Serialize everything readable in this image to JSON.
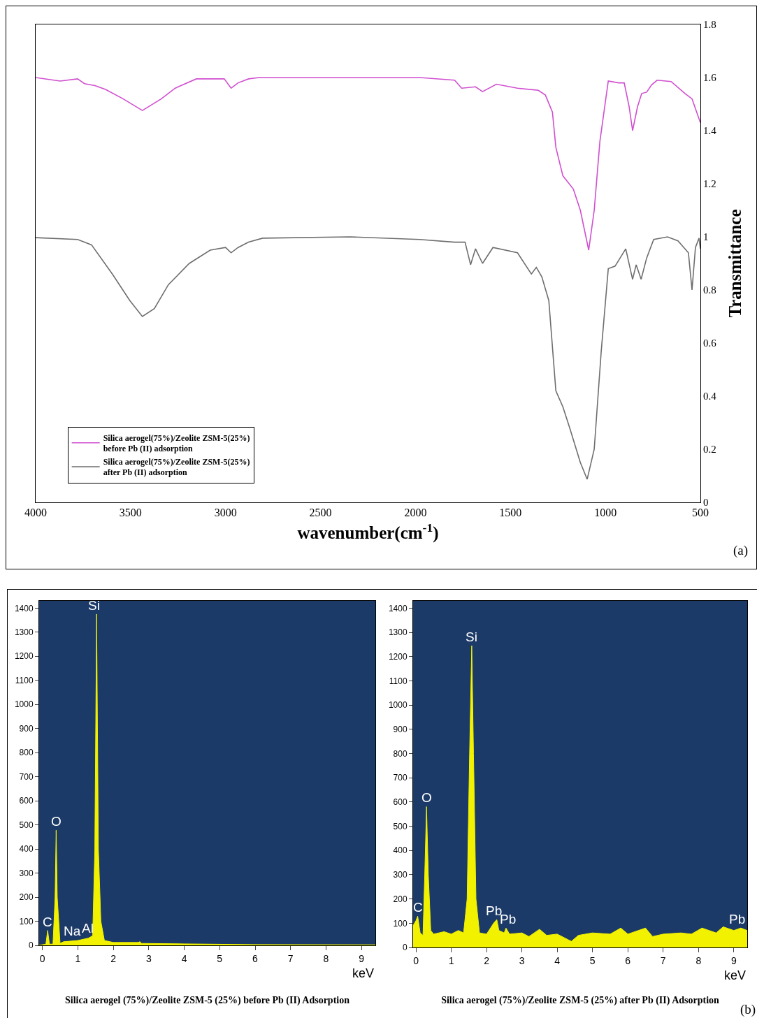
{
  "chart_data": [
    {
      "type": "line",
      "xlabel": "wavenumber(cm$^{-1}$)",
      "ylabel": "Transmittance",
      "xlim": [
        4000,
        500
      ],
      "ylim": [
        0,
        1.8
      ],
      "xticks": [
        4000,
        3500,
        3000,
        2500,
        2000,
        1500,
        1000,
        500
      ],
      "yticks": [
        0,
        0.2,
        0.4,
        0.6,
        0.8,
        1,
        1.2,
        1.4,
        1.6,
        1.8
      ],
      "legend": "bottom left",
      "annotations": [
        "(a)"
      ],
      "series": [
        {
          "name": "Silica aerogel(75%)/Zeolite ZSM-5(25%)\nbefore Pb (II) adsorption",
          "color": "#d04fcf",
          "x": [
            4000,
            3871,
            3779,
            3743,
            3688,
            3632,
            3540,
            3438,
            3338,
            3265,
            3154,
            3007,
            2971,
            2934,
            2879,
            2824,
            1978,
            1794,
            1757,
            1684,
            1647,
            1574,
            1463,
            1353,
            1316,
            1279,
            1261,
            1224,
            1169,
            1132,
            1088,
            1059,
            1029,
            985,
            930,
            901,
            875,
            857,
            831,
            809,
            783,
            757,
            728,
            654,
            581,
            544,
            500
          ],
          "values": [
            1.6,
            1.587,
            1.595,
            1.577,
            1.57,
            1.555,
            1.52,
            1.476,
            1.52,
            1.56,
            1.595,
            1.595,
            1.56,
            1.58,
            1.595,
            1.6,
            1.6,
            1.59,
            1.56,
            1.565,
            1.547,
            1.575,
            1.56,
            1.552,
            1.534,
            1.47,
            1.337,
            1.23,
            1.18,
            1.1,
            0.95,
            1.1,
            1.36,
            1.587,
            1.58,
            1.58,
            1.49,
            1.4,
            1.49,
            1.54,
            1.545,
            1.572,
            1.59,
            1.585,
            1.54,
            1.52,
            1.43
          ]
        },
        {
          "name": "Silica aerogel(75%)/Zeolite ZSM-5(25%)\nafter Pb (II) adsorption",
          "color": "#6e6e6e",
          "x": [
            4000,
            3779,
            3706,
            3596,
            3504,
            3438,
            3375,
            3301,
            3191,
            3081,
            3000,
            2971,
            2934,
            2879,
            2805,
            2346,
            1978,
            1794,
            1739,
            1710,
            1684,
            1647,
            1592,
            1463,
            1390,
            1364,
            1335,
            1298,
            1261,
            1224,
            1188,
            1132,
            1096,
            1059,
            1022,
            985,
            949,
            893,
            857,
            838,
            812,
            783,
            746,
            673,
            618,
            563,
            544,
            526,
            507,
            500
          ],
          "values": [
            0.997,
            0.99,
            0.97,
            0.86,
            0.76,
            0.7,
            0.73,
            0.82,
            0.9,
            0.95,
            0.96,
            0.94,
            0.96,
            0.98,
            0.995,
            1,
            0.99,
            0.98,
            0.98,
            0.895,
            0.955,
            0.9,
            0.96,
            0.94,
            0.86,
            0.885,
            0.85,
            0.76,
            0.42,
            0.36,
            0.28,
            0.15,
            0.087,
            0.2,
            0.57,
            0.88,
            0.89,
            0.955,
            0.84,
            0.895,
            0.84,
            0.92,
            0.99,
            1,
            0.985,
            0.94,
            0.8,
            0.96,
            0.995,
            0.955
          ]
        }
      ]
    },
    {
      "type": "area",
      "title": "Silica aerogel (75%)/Zeolite ZSM-5 (25%) before Pb (II) Adsorption",
      "xlabel": "keV",
      "xlim": [
        -0.09,
        9.39
      ],
      "ylim": [
        0,
        1430
      ],
      "xticks": [
        0,
        1,
        2,
        3,
        4,
        5,
        6,
        7,
        8,
        9
      ],
      "yticks": [
        0,
        100,
        200,
        300,
        400,
        500,
        600,
        700,
        800,
        900,
        1000,
        1100,
        1200,
        1300,
        1400
      ],
      "annotations": [
        {
          "text": "C",
          "x": 0.15,
          "y": 62
        },
        {
          "text": "O",
          "x": 0.39,
          "y": 478
        },
        {
          "text": "Si",
          "x": 1.45,
          "y": 1375
        },
        {
          "text": "Na",
          "x": 0.85,
          "y": 22
        },
        {
          "text": "Al",
          "x": 1.28,
          "y": 35
        }
      ],
      "series": [
        {
          "color": "#f2f200",
          "x": [
            -0.09,
            0.1,
            0.15,
            0.2,
            0.3,
            0.36,
            0.39,
            0.42,
            0.5,
            0.6,
            1.0,
            1.3,
            1.42,
            1.48,
            1.53,
            1.58,
            1.65,
            1.75,
            2.0,
            2.7,
            2.75,
            2.8,
            4,
            6,
            9.39
          ],
          "values": [
            0,
            5,
            62,
            5,
            5,
            200,
            478,
            200,
            8,
            15,
            20,
            30,
            40,
            400,
            1375,
            400,
            100,
            20,
            12,
            12,
            15,
            8,
            6,
            3,
            2
          ]
        }
      ]
    },
    {
      "type": "area",
      "title": "Silica aerogel (75%)/Zeolite ZSM-5 (25%) after Pb (II) Adsorption",
      "xlabel": "keV",
      "xlim": [
        -0.08,
        9.38
      ],
      "ylim": [
        0,
        1430
      ],
      "xticks": [
        0,
        1,
        2,
        3,
        4,
        5,
        6,
        7,
        8,
        9
      ],
      "yticks": [
        0,
        100,
        200,
        300,
        400,
        500,
        600,
        700,
        800,
        900,
        1000,
        1100,
        1200,
        1300,
        1400
      ],
      "annotations": [
        {
          "text": "C",
          "x": 0.05,
          "y": 129
        },
        {
          "text": "O",
          "x": 0.3,
          "y": 581
        },
        {
          "text": "Si",
          "x": 1.58,
          "y": 1245
        },
        {
          "text": "Pb",
          "x": 2.2,
          "y": 115
        },
        {
          "text": "Pb",
          "x": 2.6,
          "y": 80
        },
        {
          "text": "Pb",
          "x": 9.1,
          "y": 80
        },
        "(b)"
      ],
      "series": [
        {
          "color": "#f2f200",
          "x": [
            -0.08,
            0,
            0.05,
            0.12,
            0.2,
            0.25,
            0.3,
            0.35,
            0.42,
            0.5,
            0.8,
            1.0,
            1.2,
            1.35,
            1.45,
            1.52,
            1.58,
            1.63,
            1.7,
            1.8,
            2.0,
            2.2,
            2.29,
            2.35,
            2.5,
            2.55,
            2.65,
            3.0,
            3.2,
            3.5,
            3.7,
            4.0,
            4.4,
            4.6,
            5.0,
            5.5,
            5.8,
            6.0,
            6.5,
            6.7,
            7.0,
            7.5,
            7.8,
            8.1,
            8.5,
            8.7,
            9.0,
            9.2,
            9.38
          ],
          "values": [
            90,
            110,
            129,
            60,
            50,
            300,
            581,
            300,
            70,
            55,
            65,
            55,
            70,
            60,
            200,
            800,
            1245,
            800,
            200,
            60,
            55,
            100,
            115,
            70,
            60,
            80,
            55,
            60,
            45,
            75,
            50,
            55,
            25,
            50,
            60,
            55,
            80,
            55,
            80,
            45,
            55,
            60,
            55,
            80,
            60,
            85,
            70,
            80,
            70
          ]
        }
      ]
    }
  ]
}
